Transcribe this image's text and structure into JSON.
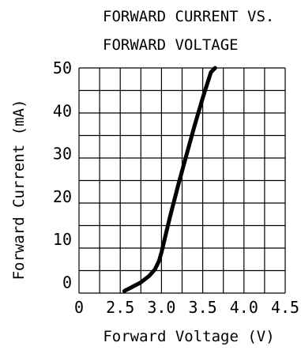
{
  "chart_data": {
    "type": "line",
    "title_lines": [
      "FORWARD CURRENT VS.",
      "FORWARD VOLTAGE"
    ],
    "xlabel": "Forward Voltage (V)",
    "ylabel": "Forward Current (mA)",
    "x_tick_labels": [
      "0",
      "2.5",
      "3.0",
      "3.5",
      "4.0",
      "4.5"
    ],
    "y_tick_labels": [
      "50",
      "40",
      "30",
      "20",
      "10",
      "0"
    ],
    "xlim": [
      2.0,
      4.5
    ],
    "ylim": [
      -2.5,
      50
    ],
    "grid": true,
    "series": [
      {
        "x": [
          2.55,
          2.65,
          2.75,
          2.85,
          2.92,
          2.97,
          3.0,
          3.05,
          3.1,
          3.2,
          3.3,
          3.4,
          3.5,
          3.6,
          3.65
        ],
        "y": [
          -2.0,
          -1.0,
          0.0,
          1.5,
          3.0,
          5.0,
          7.0,
          11.0,
          15.0,
          22.5,
          29.5,
          36.5,
          43.0,
          49.0,
          50.0
        ]
      }
    ]
  }
}
